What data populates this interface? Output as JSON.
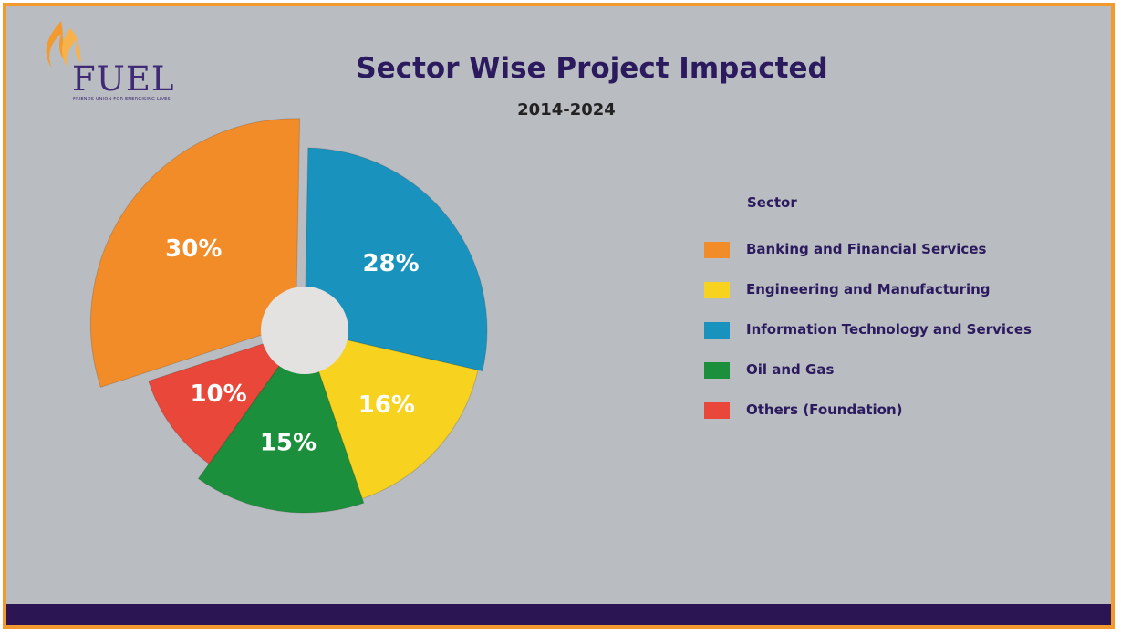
{
  "logo": {
    "text": "FUEL",
    "tagline": "FRIENDS UNION FOR ENERGISING LIVES"
  },
  "chart_data": {
    "type": "pie",
    "title": "Sector Wise Project Impacted",
    "subtitle": "2014-2024",
    "legend_title": "Sector",
    "legend_position": "right",
    "slices": [
      {
        "name": "Banking and Financial Services",
        "value": 30,
        "label": "30%",
        "color": "#f28c28"
      },
      {
        "name": "Information Technology and Services",
        "value": 28,
        "label": "28%",
        "color": "#1993bd"
      },
      {
        "name": "Engineering and Manufacturing",
        "value": 16,
        "label": "16%",
        "color": "#f7d21f"
      },
      {
        "name": "Oil and Gas",
        "value": 15,
        "label": "15%",
        "color": "#1b8f3c"
      },
      {
        "name": "Others (Foundation)",
        "value": 10,
        "label": "10%",
        "color": "#e8473a"
      }
    ],
    "legend": [
      {
        "label": "Banking and Financial Services",
        "color": "#f28c28"
      },
      {
        "label": "Engineering and Manufacturing",
        "color": "#f7d21f"
      },
      {
        "label": "Information Technology and Services",
        "color": "#1993bd"
      },
      {
        "label": "Oil and Gas",
        "color": "#1b8f3c"
      },
      {
        "label": "Others (Foundation)",
        "color": "#e8473a"
      }
    ]
  },
  "colors": {
    "border": "#f39a2e",
    "background": "#b9bcc0",
    "bottom_bar": "#2b1653",
    "title": "#2b1a5e"
  }
}
